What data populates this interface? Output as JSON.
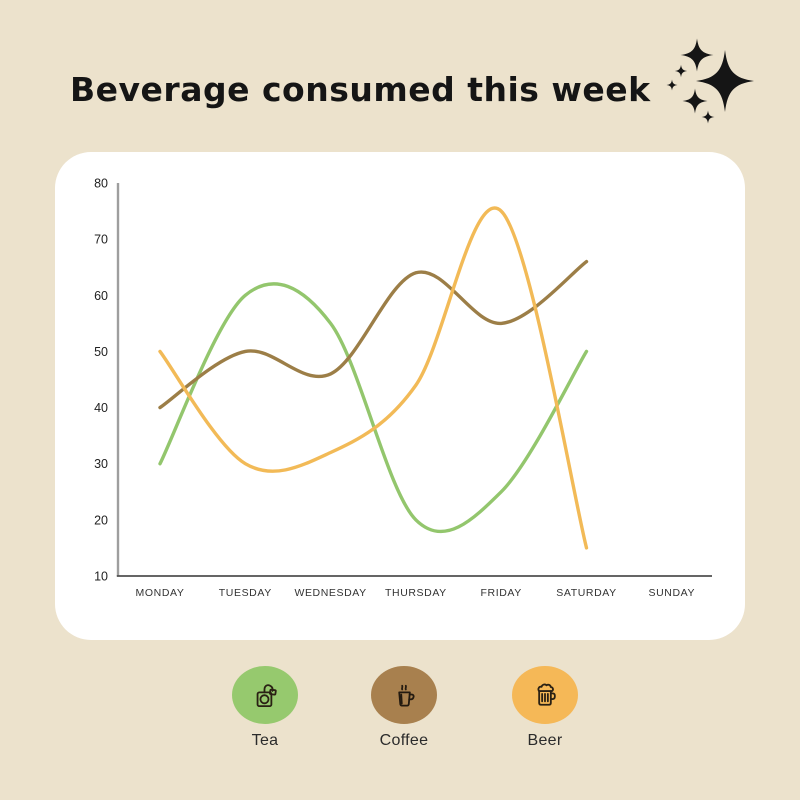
{
  "page": {
    "title": "Beverage consumed this week",
    "background_color": "#ece2cc",
    "card_color": "#ffffff",
    "title_color": "#151515"
  },
  "chart_data": {
    "type": "line",
    "title": "Beverage consumed this week",
    "categories": [
      "MONDAY",
      "TUESDAY",
      "WEDNESDAY",
      "THURSDAY",
      "FRIDAY",
      "SATURDAY",
      "SUNDAY"
    ],
    "series": [
      {
        "name": "Tea",
        "color": "#93c66d",
        "values": [
          30,
          60,
          55,
          20,
          25,
          50,
          null
        ]
      },
      {
        "name": "Coffee",
        "color": "#9c7e47",
        "values": [
          40,
          50,
          46,
          64,
          55,
          66,
          null
        ]
      },
      {
        "name": "Beer",
        "color": "#f2ba57",
        "values": [
          50,
          30,
          32,
          44,
          75,
          15,
          null
        ]
      }
    ],
    "ylim": [
      10,
      80
    ],
    "yticks": [
      80,
      70,
      60,
      50,
      40,
      30,
      20,
      10
    ],
    "grid": false,
    "legend_position": "bottom",
    "axis_colors": {
      "y_axis": "#9e9e9e",
      "x_axis": "#4f4f4f",
      "tick_label": "#222222",
      "day_label": "#333333"
    }
  },
  "legend": {
    "items": [
      {
        "label": "Tea",
        "badge_color": "#96c96e",
        "icon": "tea-bag-icon"
      },
      {
        "label": "Coffee",
        "badge_color": "#a8804e",
        "icon": "coffee-cup-icon"
      },
      {
        "label": "Beer",
        "badge_color": "#f5b857",
        "icon": "beer-mug-icon"
      }
    ]
  },
  "decoration": {
    "sparkles_color": "#151515"
  }
}
